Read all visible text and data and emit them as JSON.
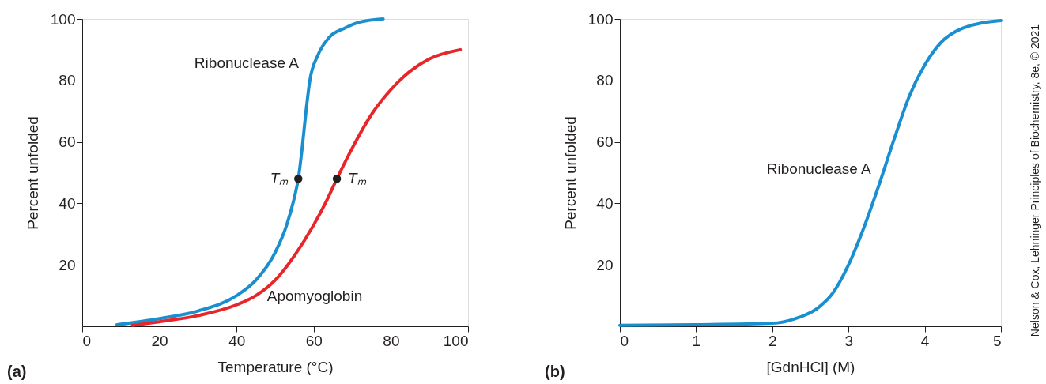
{
  "chart_data": [
    {
      "type": "line",
      "xlabel": "Temperature (°C)",
      "ylabel": "Percent unfolded",
      "xlim": [
        0,
        100
      ],
      "xticks": [
        0,
        20,
        40,
        60,
        80,
        100
      ],
      "ylim": [
        0,
        100
      ],
      "yticks": [
        20,
        40,
        60,
        80,
        100
      ],
      "grid": false,
      "series": [
        {
          "name": "Ribonuclease A",
          "color": "#1a8fd0",
          "x": [
            9,
            20,
            30,
            40,
            45,
            50,
            53,
            55,
            56,
            57,
            58,
            59,
            61,
            64,
            68,
            72,
            78
          ],
          "values": [
            0.5,
            2.5,
            5,
            10,
            15,
            24,
            33,
            42,
            48,
            58,
            70,
            80,
            88,
            94,
            97,
            99,
            100
          ]
        },
        {
          "name": "Apomyoglobin",
          "color": "#e8262a",
          "x": [
            13,
            20,
            30,
            40,
            45,
            50,
            55,
            60,
            63,
            66,
            70,
            75,
            80,
            85,
            90,
            98
          ],
          "values": [
            0.3,
            1.5,
            3.5,
            7,
            10,
            15,
            23,
            33,
            40,
            48,
            58,
            69,
            77,
            83,
            87,
            90
          ]
        },
        {
          "type": "scatter",
          "color": "#231f20",
          "marker": "circle",
          "x": [
            56,
            66
          ],
          "values": [
            48,
            48
          ]
        }
      ],
      "annotations": [
        "(a)",
        {
          "text": "Tₘ",
          "x": 56,
          "y": 48
        },
        {
          "text": "Tₘ",
          "x": 66,
          "y": 48
        }
      ]
    },
    {
      "type": "line",
      "xlabel": "[GdnHCl] (M)",
      "ylabel": "Percent unfolded",
      "xlim": [
        0,
        5
      ],
      "xticks": [
        0,
        1,
        2,
        3,
        4,
        5
      ],
      "ylim": [
        0,
        100
      ],
      "yticks": [
        20,
        40,
        60,
        80,
        100
      ],
      "grid": false,
      "series": [
        {
          "name": "Ribonuclease A",
          "color": "#1a8fd0",
          "x": [
            0,
            1,
            2,
            2.3,
            2.6,
            2.8,
            3,
            3.2,
            3.4,
            3.6,
            3.8,
            4,
            4.2,
            4.5,
            5
          ],
          "values": [
            0.3,
            0.5,
            1,
            2.5,
            6,
            11,
            20,
            32,
            46,
            61,
            75,
            85,
            92,
            97,
            99.5
          ]
        }
      ],
      "annotations": [
        "(b)",
        "Nelson & Cox, Lehninger Principles of Biochemistry, 8e, © 2021"
      ]
    }
  ]
}
